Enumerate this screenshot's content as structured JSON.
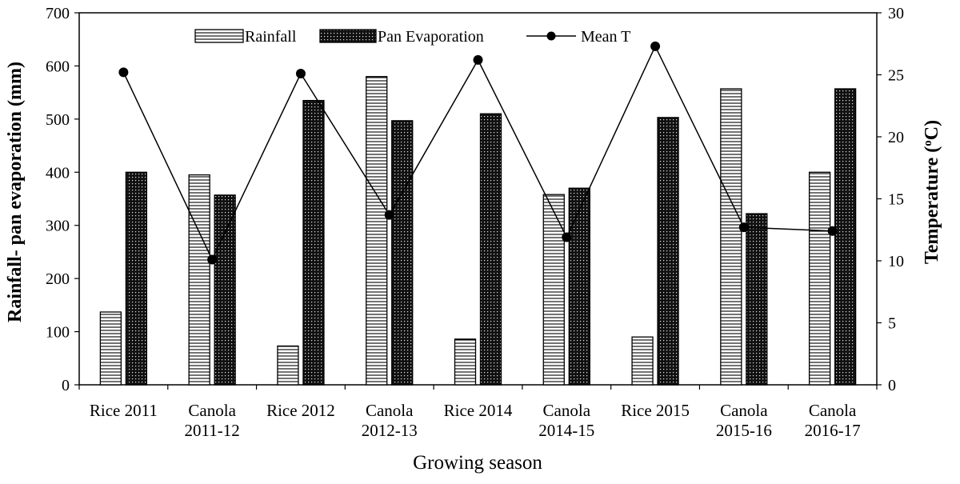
{
  "chart_data": {
    "type": "bar+line",
    "title": "",
    "xlabel": "Growing season",
    "ylabel_left": "Rainfall- pan evaporation (mm)",
    "ylabel_right_prefix": "Temperature (",
    "ylabel_right_unit_sup": "o",
    "ylabel_right_unit": "C)",
    "categories": [
      [
        "Rice 2011"
      ],
      [
        "Canola",
        "2011-12"
      ],
      [
        "Rice 2012"
      ],
      [
        "Canola",
        "2012-13"
      ],
      [
        "Rice 2014"
      ],
      [
        "Canola",
        "2014-15"
      ],
      [
        "Rice 2015"
      ],
      [
        "Canola",
        "2015-16"
      ],
      [
        "Canola",
        "2016-17"
      ]
    ],
    "ylim_left": [
      0,
      700
    ],
    "yticks_left": [
      "0",
      "100",
      "200",
      "300",
      "400",
      "500",
      "600",
      "700"
    ],
    "ylim_right": [
      0,
      30
    ],
    "yticks_right": [
      "0",
      "5",
      "10",
      "15",
      "20",
      "25",
      "30"
    ],
    "series": [
      {
        "name": "Rainfall",
        "kind": "bar",
        "axis": "left",
        "pattern": "horizontal-stripes",
        "values": [
          137,
          395,
          73,
          580,
          86,
          358,
          90,
          557,
          400
        ]
      },
      {
        "name": "Pan Evaporation",
        "kind": "bar",
        "axis": "left",
        "pattern": "dark-dotted",
        "values": [
          400,
          357,
          535,
          497,
          510,
          370,
          503,
          322,
          557
        ]
      },
      {
        "name": "Mean T",
        "kind": "line",
        "axis": "right",
        "marker": "circle",
        "values": [
          25.2,
          10.1,
          25.1,
          13.7,
          26.2,
          11.9,
          27.3,
          12.7,
          12.4
        ]
      }
    ],
    "legend_position": "top-center"
  }
}
